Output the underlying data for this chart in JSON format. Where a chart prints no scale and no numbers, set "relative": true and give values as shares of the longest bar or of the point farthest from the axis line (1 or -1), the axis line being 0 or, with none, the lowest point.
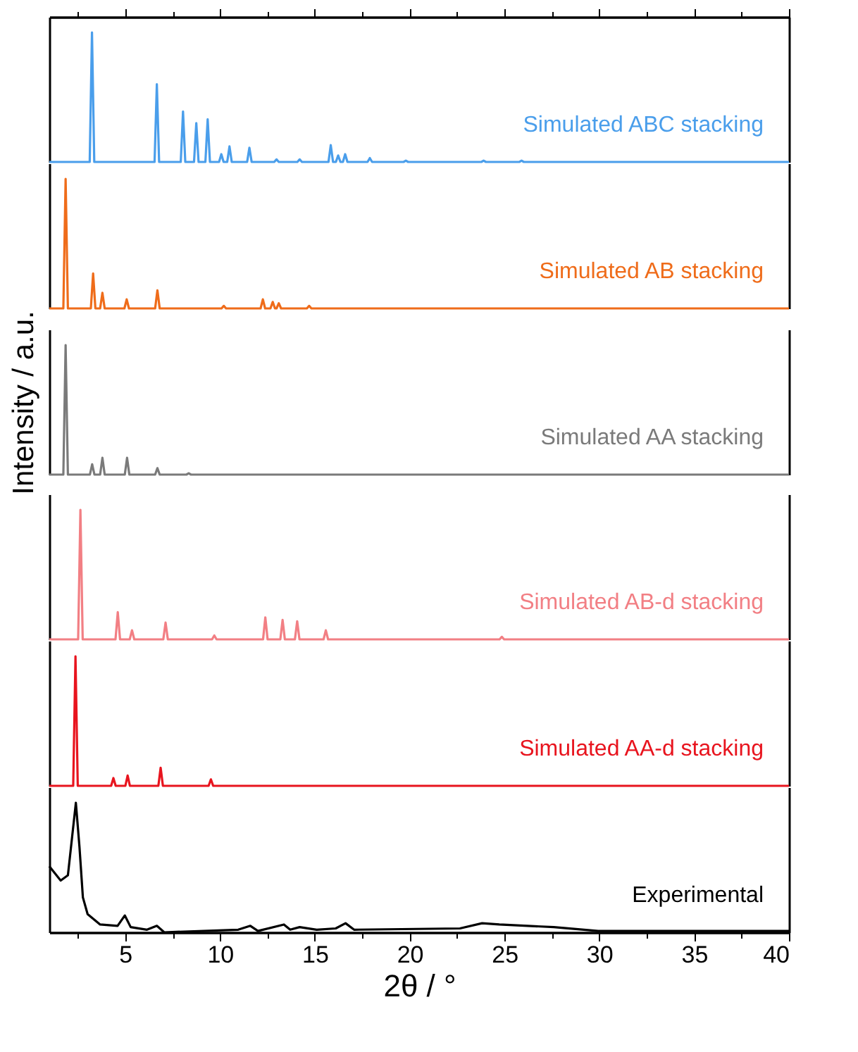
{
  "chart_data": [
    {
      "type": "line",
      "relative": true,
      "xlim": [
        1,
        40
      ],
      "xticks": [
        {
          "value": 2.5,
          "label": null
        },
        5,
        {
          "value": 7.5,
          "label": null
        },
        10,
        {
          "value": 12.5,
          "label": null
        },
        15,
        {
          "value": 17.5,
          "label": null
        },
        20,
        {
          "value": 22.5,
          "label": null
        },
        25,
        {
          "value": 27.5,
          "label": null
        },
        30,
        {
          "value": 32.5,
          "label": null
        },
        35,
        {
          "value": 37.5,
          "label": null
        },
        40
      ],
      "tick_labels": false,
      "x": [
        1,
        3.13,
        3.25,
        3.37,
        6.55,
        6.67,
        6.79,
        7.93,
        8.05,
        8.17,
        8.63,
        8.75,
        8.87,
        9.23,
        9.35,
        9.47,
        9.95,
        10.07,
        10.19,
        10.38,
        10.5,
        10.62,
        11.43,
        11.55,
        11.67,
        12.86,
        12.98,
        13.1,
        14.08,
        14.2,
        14.32,
        15.72,
        15.84,
        15.96,
        16.11,
        16.23,
        16.35,
        16.48,
        16.6,
        16.72,
        17.78,
        17.9,
        18.02,
        19.68,
        19.8,
        19.92,
        23.78,
        23.9,
        24.02,
        25.78,
        25.9,
        26.02,
        40
      ],
      "series": [
        {
          "name": "Simulated ABC stacking",
          "color": "#4a9eeb",
          "values": [
            0,
            0,
            1,
            0,
            0,
            0.6,
            0,
            0,
            0.39,
            0,
            0,
            0.3,
            0,
            0,
            0.33,
            0,
            0,
            0.06,
            0,
            0,
            0.12,
            0,
            0,
            0.11,
            0,
            0,
            0.02,
            0,
            0,
            0.02,
            0,
            0,
            0.13,
            0,
            0,
            0.05,
            0,
            0,
            0.06,
            0,
            0,
            0.03,
            0,
            0,
            0.01,
            0,
            0,
            0.01,
            0,
            0,
            0.01,
            0,
            0
          ]
        }
      ]
    },
    {
      "type": "line",
      "relative": true,
      "xlim": [
        1,
        40
      ],
      "tick_labels": false,
      "x": [
        1,
        1.74,
        1.86,
        1.98,
        3.19,
        3.31,
        3.43,
        3.68,
        3.8,
        3.92,
        4.96,
        5.08,
        5.2,
        6.58,
        6.7,
        6.82,
        10.08,
        10.2,
        10.32,
        12.14,
        12.26,
        12.38,
        12.66,
        12.78,
        12.9,
        12.98,
        13.1,
        13.22,
        14.58,
        14.7,
        14.82,
        40
      ],
      "series": [
        {
          "name": "Simulated AB stacking",
          "color": "#ef6c1a",
          "values": [
            0,
            0,
            1,
            0,
            0,
            0.27,
            0,
            0,
            0.12,
            0,
            0,
            0.07,
            0,
            0,
            0.14,
            0,
            0,
            0.02,
            0,
            0,
            0.07,
            0,
            0,
            0.05,
            0,
            0,
            0.04,
            0,
            0,
            0.02,
            0,
            0
          ]
        }
      ]
    },
    {
      "type": "line",
      "relative": true,
      "xlim": [
        1,
        40
      ],
      "tick_labels": false,
      "ylabel": "Intensity / a.u.",
      "x": [
        1,
        1.74,
        1.86,
        1.98,
        3.14,
        3.26,
        3.38,
        3.68,
        3.8,
        3.92,
        4.98,
        5.1,
        5.22,
        6.58,
        6.7,
        6.82,
        8.23,
        8.35,
        8.47,
        40
      ],
      "series": [
        {
          "name": "Simulated AA stacking",
          "color": "#7a7a7a",
          "values": [
            0,
            0,
            1,
            0,
            0,
            0.08,
            0,
            0,
            0.13,
            0,
            0,
            0.13,
            0,
            0,
            0.05,
            0,
            0,
            0.01,
            0,
            0
          ]
        }
      ]
    },
    {
      "type": "line",
      "relative": true,
      "xlim": [
        1,
        40
      ],
      "tick_labels": false,
      "x": [
        1,
        2.52,
        2.64,
        2.76,
        4.49,
        4.61,
        4.73,
        5.24,
        5.36,
        5.48,
        7.01,
        7.13,
        7.25,
        9.58,
        9.7,
        9.82,
        12.27,
        12.39,
        12.51,
        13.18,
        13.3,
        13.42,
        13.95,
        14.07,
        14.19,
        15.46,
        15.58,
        15.7,
        24.74,
        24.86,
        24.98,
        40
      ],
      "series": [
        {
          "name": "Simulated AB-d stacking",
          "color": "#f27f84",
          "values": [
            0,
            0,
            1,
            0,
            0,
            0.21,
            0,
            0,
            0.07,
            0,
            0,
            0.13,
            0,
            0,
            0.03,
            0,
            0,
            0.17,
            0,
            0,
            0.15,
            0,
            0,
            0.14,
            0,
            0,
            0.07,
            0,
            0,
            0.02,
            0,
            0
          ]
        }
      ]
    },
    {
      "type": "line",
      "relative": true,
      "xlim": [
        1,
        40
      ],
      "tick_labels": false,
      "x": [
        1,
        2.26,
        2.38,
        2.5,
        4.26,
        4.38,
        4.5,
        5.01,
        5.13,
        5.25,
        6.75,
        6.87,
        6.99,
        9.4,
        9.52,
        9.64,
        40
      ],
      "series": [
        {
          "name": "Simulated AA-d stacking",
          "color": "#e8141e",
          "values": [
            0,
            0,
            1,
            0,
            0,
            0.06,
            0,
            0,
            0.08,
            0,
            0,
            0.14,
            0,
            0,
            0.05,
            0,
            0
          ]
        }
      ]
    },
    {
      "type": "line",
      "relative": true,
      "xlim": [
        1,
        40
      ],
      "xticks": [
        {
          "value": 2.5,
          "label": null
        },
        5,
        {
          "value": 7.5,
          "label": null
        },
        10,
        {
          "value": 12.5,
          "label": null
        },
        15,
        {
          "value": 17.5,
          "label": null
        },
        20,
        {
          "value": 22.5,
          "label": null
        },
        25,
        {
          "value": 27.5,
          "label": null
        },
        30,
        {
          "value": 32.5,
          "label": null
        },
        35,
        {
          "value": 37.5,
          "label": null
        },
        40
      ],
      "tick_labels": "x",
      "xlabel": "2θ / °",
      "x": [
        1,
        1.6,
        1.98,
        2.4,
        2.59,
        2.77,
        3.02,
        3.68,
        4.6,
        4.98,
        5.29,
        6.15,
        6.67,
        7.06,
        10.96,
        11.6,
        12,
        13.37,
        13.7,
        14.2,
        15.1,
        16.1,
        16.62,
        17.07,
        22.65,
        23.82,
        24.73,
        27.6,
        29.94,
        39.55,
        40
      ],
      "series": [
        {
          "name": "Experimental",
          "color": "#000000",
          "values": [
            0.51,
            0.4,
            0.44,
            1,
            0.66,
            0.27,
            0.14,
            0.06,
            0.05,
            0.13,
            0.04,
            0.02,
            0.05,
            0,
            0.02,
            0.05,
            0.01,
            0.06,
            0.02,
            0.04,
            0.02,
            0.03,
            0.07,
            0.02,
            0.03,
            0.07,
            0.06,
            0.04,
            0.01,
            0.01,
            0.01
          ]
        }
      ]
    }
  ]
}
